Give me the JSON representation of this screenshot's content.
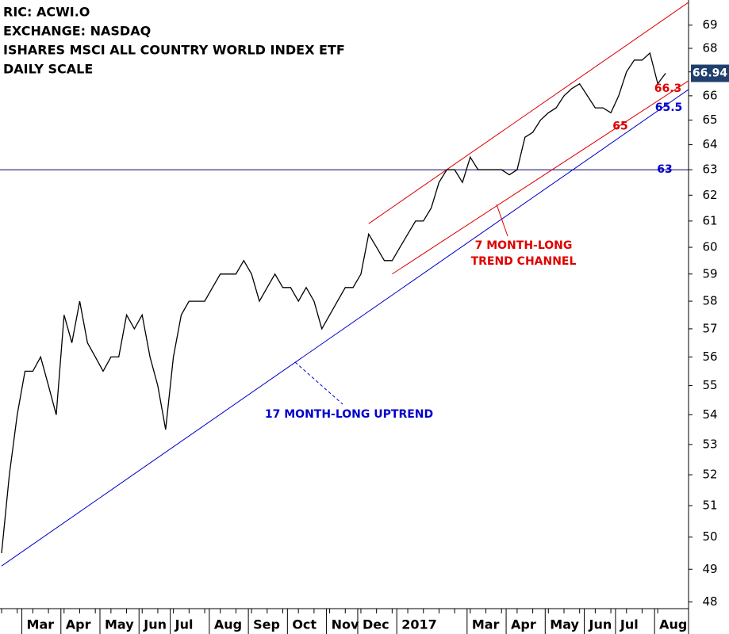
{
  "chart_data": {
    "type": "line",
    "header": [
      "RIC: ACWI.O",
      "EXCHANGE: NASDAQ",
      "ISHARES MSCI ALL COUNTRY WORLD INDEX ETF",
      "DAILY SCALE"
    ],
    "categories": [
      null,
      null,
      null,
      "Mar",
      null,
      null,
      null,
      null,
      "Apr",
      null,
      null,
      null,
      null,
      "May",
      null,
      null,
      null,
      null,
      "Jun",
      null,
      null,
      null,
      "Jul",
      null,
      null,
      null,
      null,
      "Aug",
      null,
      null,
      null,
      null,
      "Sep",
      null,
      null,
      null,
      null,
      "Oct",
      null,
      null,
      null,
      null,
      "Nov",
      null,
      null,
      null,
      "Dec",
      null,
      null,
      null,
      null,
      "2017",
      null,
      null,
      null,
      null,
      null,
      null,
      null,
      null,
      "Mar",
      null,
      null,
      null,
      null,
      "Apr",
      null,
      null,
      null,
      null,
      "May",
      null,
      null,
      null,
      null,
      "Jun",
      null,
      null,
      null,
      "Jul",
      null,
      null,
      null,
      null,
      "Aug",
      null
    ],
    "series": [
      {
        "color": "#000000",
        "values": [
          49.5,
          52,
          54,
          55.5,
          55.5,
          56,
          55,
          54,
          57.5,
          56.5,
          58,
          56.5,
          56,
          55.5,
          56,
          56,
          57.5,
          57,
          57.5,
          56,
          55,
          53.5,
          56,
          57.5,
          58,
          58,
          58,
          58.5,
          59,
          59,
          59,
          59.5,
          59,
          58,
          58.5,
          59,
          58.5,
          58.5,
          58,
          58.5,
          58,
          57,
          57.5,
          58,
          58.5,
          58.5,
          59,
          60.5,
          60,
          59.5,
          59.5,
          60,
          60.5,
          61,
          61,
          61.5,
          62.5,
          63,
          63,
          62.5,
          63.5,
          63,
          63,
          63,
          63,
          62.8,
          63,
          64.3,
          64.5,
          65,
          65.3,
          65.5,
          66,
          66.3,
          66.5,
          66,
          65.5,
          65.5,
          65.3,
          66,
          67,
          67.5,
          67.5,
          67.8,
          66.5,
          66.94
        ]
      }
    ],
    "last_price": 66.94,
    "log_scale": true,
    "ylim": [
      47.8,
      70.1
    ],
    "yticks": [
      48,
      49,
      50,
      51,
      52,
      53,
      54,
      55,
      56,
      57,
      58,
      59,
      60,
      61,
      62,
      63,
      64,
      65,
      66,
      67,
      68,
      69
    ],
    "trendlines": [
      {
        "color": "#0000cc",
        "from": [
          0,
          49.1
        ],
        "to": [
          85,
          65.6
        ]
      },
      {
        "color": "#e00000",
        "from": [
          47,
          60.9
        ],
        "to": [
          85,
          69.3
        ]
      },
      {
        "color": "#e00000",
        "from": [
          50,
          59
        ],
        "to": [
          85,
          66.0
        ]
      }
    ],
    "hline": {
      "value": 63,
      "color": "#000066"
    },
    "level_labels": [
      {
        "value": 66.3,
        "color": "#e00000"
      },
      {
        "value": 65.5,
        "color": "#0000cc"
      },
      {
        "value": 65,
        "color": "#e00000"
      },
      {
        "value": 63,
        "color": "#0000cc"
      }
    ],
    "annotations": [
      {
        "text": [
          "7 MONTH-LONG",
          "TREND CHANNEL"
        ],
        "color": "#e00000"
      },
      {
        "text": [
          "17 MONTH-LONG UPTREND"
        ],
        "color": "#0000cc"
      }
    ]
  }
}
